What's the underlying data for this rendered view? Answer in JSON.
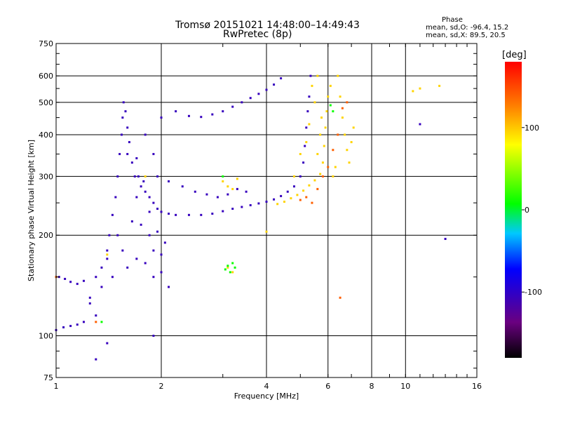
{
  "header": {
    "title_line1": "Tromsø 20151021 14:48:00–14:49:43",
    "title_line2": "RwPretec (8p)"
  },
  "phase_info": {
    "heading": "Phase",
    "line1": "mean, sd,O: -96.4, 15.2",
    "line2": "mean, sd,X:  89.5, 20.5"
  },
  "chart_data": {
    "type": "scatter",
    "title": "Tromsø 20151021 14:48:00–14:49:43",
    "subtitle": "RwPretec (8p)",
    "xlabel": "Frequency [MHz]",
    "ylabel": "Stationary phase Virtual Height [km]",
    "x_scale": "log",
    "y_scale": "log",
    "xlim": [
      1,
      16
    ],
    "ylim": [
      75,
      750
    ],
    "x_ticks": [
      1,
      2,
      4,
      6,
      8,
      10,
      16
    ],
    "x_tick_labels": [
      "1",
      "2",
      "4",
      "6",
      "8",
      "10",
      "16"
    ],
    "y_ticks": [
      75,
      100,
      200,
      300,
      400,
      500,
      600,
      750
    ],
    "y_tick_labels": [
      "75",
      "100",
      "200",
      "300",
      "400",
      "500",
      "600",
      "750"
    ],
    "grid": true,
    "colorbar": {
      "label": "[deg]",
      "range": [
        -180,
        180
      ],
      "ticks": [
        100,
        0,
        -100
      ],
      "tick_labels": [
        "100",
        "0",
        "-100"
      ]
    },
    "colors": {
      "o_mode": "#1a1aff",
      "x_mode": "#e6e600",
      "x_mode_orange": "#ff9900",
      "green": "#66cc33",
      "grid": "#000000"
    },
    "series": [
      {
        "mode": "O",
        "phase": -105,
        "points": [
          [
            1.0,
            104
          ],
          [
            1.05,
            106
          ],
          [
            1.1,
            107
          ],
          [
            1.15,
            108
          ],
          [
            1.2,
            110
          ],
          [
            1.02,
            150
          ],
          [
            1.06,
            148
          ],
          [
            1.1,
            145
          ],
          [
            1.15,
            143
          ],
          [
            1.2,
            146
          ],
          [
            1.25,
            130
          ],
          [
            1.3,
            150
          ],
          [
            1.35,
            160
          ],
          [
            1.4,
            180
          ],
          [
            1.42,
            200
          ],
          [
            1.45,
            230
          ],
          [
            1.48,
            260
          ],
          [
            1.5,
            300
          ],
          [
            1.52,
            350
          ],
          [
            1.54,
            400
          ],
          [
            1.55,
            450
          ],
          [
            1.56,
            500
          ],
          [
            1.58,
            470
          ],
          [
            1.6,
            420
          ],
          [
            1.62,
            380
          ],
          [
            1.65,
            330
          ],
          [
            1.68,
            300
          ],
          [
            1.7,
            340
          ],
          [
            1.72,
            300
          ],
          [
            1.75,
            280
          ],
          [
            1.78,
            290
          ],
          [
            1.8,
            270
          ],
          [
            1.85,
            260
          ],
          [
            1.9,
            250
          ],
          [
            1.95,
            240
          ],
          [
            2.0,
            235
          ],
          [
            2.1,
            232
          ],
          [
            2.2,
            230
          ],
          [
            2.4,
            230
          ],
          [
            2.6,
            230
          ],
          [
            2.8,
            232
          ],
          [
            3.0,
            236
          ],
          [
            3.2,
            240
          ],
          [
            3.4,
            243
          ],
          [
            3.6,
            246
          ],
          [
            3.8,
            249
          ],
          [
            4.0,
            252
          ],
          [
            4.2,
            256
          ],
          [
            4.4,
            262
          ],
          [
            4.6,
            270
          ],
          [
            4.8,
            280
          ],
          [
            5.0,
            300
          ],
          [
            5.1,
            330
          ],
          [
            5.15,
            370
          ],
          [
            5.2,
            420
          ],
          [
            5.25,
            470
          ],
          [
            5.3,
            520
          ],
          [
            5.35,
            600
          ],
          [
            2.2,
            470
          ],
          [
            2.4,
            455
          ],
          [
            2.6,
            452
          ],
          [
            2.8,
            460
          ],
          [
            3.0,
            470
          ],
          [
            3.2,
            485
          ],
          [
            3.4,
            500
          ],
          [
            3.6,
            515
          ],
          [
            3.8,
            530
          ],
          [
            4.0,
            545
          ],
          [
            4.2,
            565
          ],
          [
            4.4,
            590
          ],
          [
            1.55,
            180
          ],
          [
            1.6,
            160
          ],
          [
            1.7,
            170
          ],
          [
            1.8,
            165
          ],
          [
            1.9,
            150
          ],
          [
            2.0,
            155
          ],
          [
            1.45,
            150
          ],
          [
            1.35,
            140
          ],
          [
            1.9,
            180
          ],
          [
            2.0,
            175
          ],
          [
            2.1,
            140
          ],
          [
            1.85,
            200
          ],
          [
            1.95,
            205
          ],
          [
            2.05,
            190
          ],
          [
            1.65,
            220
          ],
          [
            1.75,
            215
          ],
          [
            1.85,
            235
          ],
          [
            2.1,
            290
          ],
          [
            2.3,
            280
          ],
          [
            2.5,
            270
          ],
          [
            2.7,
            265
          ],
          [
            2.9,
            260
          ],
          [
            3.1,
            265
          ],
          [
            3.3,
            275
          ],
          [
            3.5,
            270
          ],
          [
            1.25,
            125
          ],
          [
            1.3,
            115
          ],
          [
            1.4,
            95
          ],
          [
            1.3,
            85
          ],
          [
            1.9,
            100
          ],
          [
            1.5,
            200
          ],
          [
            1.4,
            170
          ],
          [
            1.6,
            350
          ],
          [
            1.7,
            260
          ],
          [
            1.95,
            300
          ],
          [
            1.8,
            400
          ],
          [
            1.9,
            350
          ],
          [
            2.0,
            450
          ],
          [
            11.0,
            430
          ],
          [
            13.0,
            195
          ]
        ]
      },
      {
        "mode": "X",
        "phase": 95,
        "points": [
          [
            4.3,
            248
          ],
          [
            4.5,
            252
          ],
          [
            4.7,
            258
          ],
          [
            4.9,
            264
          ],
          [
            5.1,
            272
          ],
          [
            5.3,
            282
          ],
          [
            5.5,
            292
          ],
          [
            5.7,
            305
          ],
          [
            5.8,
            330
          ],
          [
            5.85,
            370
          ],
          [
            5.9,
            420
          ],
          [
            5.95,
            470
          ],
          [
            6.0,
            520
          ],
          [
            6.1,
            560
          ],
          [
            5.6,
            350
          ],
          [
            5.7,
            400
          ],
          [
            5.75,
            450
          ],
          [
            5.5,
            500
          ],
          [
            5.4,
            560
          ],
          [
            5.6,
            600
          ],
          [
            6.4,
            600
          ],
          [
            6.5,
            520
          ],
          [
            6.6,
            450
          ],
          [
            6.7,
            400
          ],
          [
            6.8,
            360
          ],
          [
            6.9,
            330
          ],
          [
            7.0,
            380
          ],
          [
            7.1,
            420
          ],
          [
            6.2,
            300
          ],
          [
            6.3,
            320
          ],
          [
            3.0,
            290
          ],
          [
            3.1,
            280
          ],
          [
            3.2,
            275
          ],
          [
            3.3,
            295
          ],
          [
            1.4,
            175
          ],
          [
            3.1,
            160
          ],
          [
            3.2,
            155
          ],
          [
            10.5,
            540
          ],
          [
            11.0,
            550
          ],
          [
            12.5,
            560
          ],
          [
            1.8,
            300
          ],
          [
            4.0,
            205
          ],
          [
            4.8,
            300
          ],
          [
            5.0,
            350
          ],
          [
            5.2,
            380
          ],
          [
            5.3,
            430
          ]
        ]
      },
      {
        "mode": "mixed",
        "phase": 140,
        "points": [
          [
            5.4,
            250
          ],
          [
            5.6,
            275
          ],
          [
            5.8,
            300
          ],
          [
            6.0,
            320
          ],
          [
            6.2,
            360
          ],
          [
            6.4,
            400
          ],
          [
            5.2,
            260
          ],
          [
            5.0,
            255
          ],
          [
            6.6,
            480
          ],
          [
            6.8,
            500
          ],
          [
            6.5,
            130
          ],
          [
            1.3,
            110
          ],
          [
            1.0,
            150
          ]
        ]
      },
      {
        "mode": "green",
        "phase": 10,
        "points": [
          [
            3.05,
            158
          ],
          [
            3.1,
            162
          ],
          [
            3.15,
            155
          ],
          [
            3.2,
            165
          ],
          [
            3.25,
            160
          ],
          [
            1.35,
            110
          ],
          [
            3.0,
            300
          ],
          [
            6.1,
            490
          ],
          [
            6.2,
            470
          ]
        ]
      }
    ]
  }
}
